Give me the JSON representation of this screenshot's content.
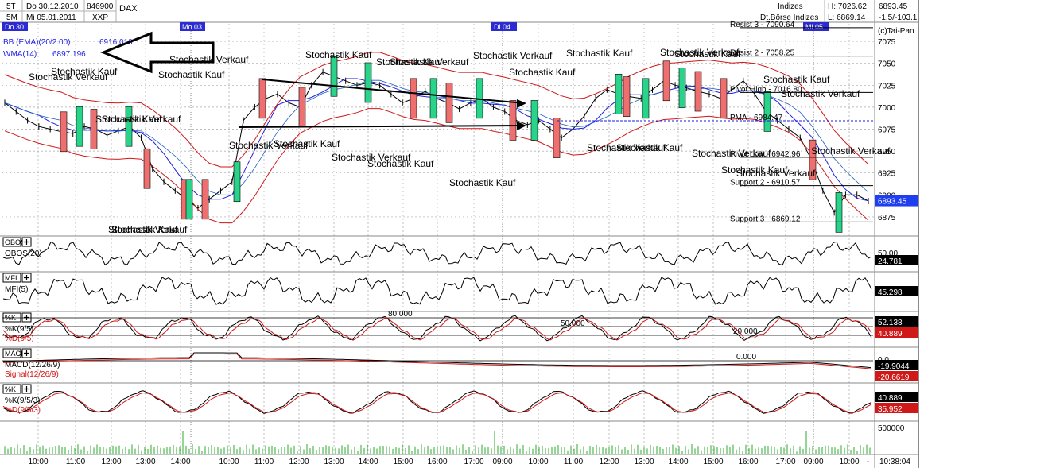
{
  "header": {
    "period_5t": "5T",
    "period_5m": "5M",
    "date_from": "Do 30.12.2010",
    "date_to": "Mi 05.01.2011",
    "code": "846900",
    "name": "DAX",
    "exchange_short": "XXP",
    "category": "Indizes",
    "exchange": "Dt.Börse Indizes",
    "high": "H: 7026.62",
    "low": "L: 6869.14",
    "last": "6893.45",
    "change": "-1.5/-103.1",
    "copyright": "(c)Tai-Pan"
  },
  "day_markers": [
    "Do 30",
    "Mo 03",
    "Di 04",
    "Mi 05"
  ],
  "legend": {
    "bb": "BB (EMA)(20/2.00)",
    "bb_value": "6916.010",
    "wma": "WMA(14)",
    "wma_value": "6897.196"
  },
  "levels": [
    {
      "label": "Resist 3 - 7090.64",
      "value": 7090.64
    },
    {
      "label": "Resist 2 - 7058.25",
      "value": 7058.25
    },
    {
      "label": "Pivot High - 7016.80",
      "value": 7016.8
    },
    {
      "label": "PMA - 6984.47",
      "value": 6984.47
    },
    {
      "label": "Pivot Low - 6942.96",
      "value": 6942.96
    },
    {
      "label": "Support 2 - 6910.57",
      "value": 6910.57
    },
    {
      "label": "Support 3 - 6869.12",
      "value": 6869.12
    }
  ],
  "signal_kauf": "Stochastik Kauf",
  "signal_verkauf": "Stochastik Verkauf",
  "panels": {
    "obos": {
      "button": "OBOS",
      "label": "OBOS(20)",
      "value": "24.781",
      "level": "50.00"
    },
    "mfi": {
      "button": "MFI",
      "label": "MFI(5)",
      "value": "45.298"
    },
    "stoch1": {
      "button": "%K",
      "label_k": "%K(9/5)",
      "label_d": "%D(9/5)",
      "value_k": "52.138",
      "value_d": "40.889",
      "level_80": "80.000",
      "level_50": "50.000",
      "level_20": "20.000"
    },
    "macd": {
      "button": "MACD",
      "label": "MACD(12/26/9)",
      "label_signal": "Signal(12/26/9)",
      "value": "-19.9044",
      "value_signal": "-20.6619",
      "level_0": "0.000",
      "level_0_axis": "0.0"
    },
    "stoch2": {
      "button": "%K",
      "label_k": "%K(9/5/3)",
      "label_d": "%D(9/5/3)",
      "value_k": "40.889",
      "value_d": "35.952"
    },
    "volume": {
      "scale": "500000"
    }
  },
  "time_axis": {
    "labels": [
      "10:00",
      "11:00",
      "12:00",
      "13:00",
      "14:00",
      "10:00",
      "11:00",
      "12:00",
      "13:00",
      "14:00",
      "15:00",
      "16:00",
      "17:00",
      "09:00",
      "10:00",
      "11:00",
      "12:00",
      "13:00",
      "14:00",
      "15:00",
      "16:00",
      "17:00",
      "09:00",
      "10:00"
    ],
    "dash": "-",
    "clock": "10:38:04"
  },
  "colors": {
    "bb": "#d01818",
    "wma": "#1e1ee6",
    "bull": "#29d38a",
    "bear": "#ee6f6f",
    "last_box": "#1e3ef0",
    "grid": "#a8a8a8"
  },
  "chart_data": {
    "type": "line",
    "title": "DAX 846900",
    "y_axis_ticks": [
      7075,
      7050,
      7025,
      7000,
      6975,
      6950,
      6925,
      6900,
      6875
    ],
    "ylim": [
      6855,
      7095
    ],
    "grid": true,
    "series": [
      {
        "name": "DAX",
        "values": [
          7005,
          6995,
          6985,
          6978,
          6975,
          6972,
          6970,
          6978,
          6975,
          6968,
          6973,
          6978,
          6965,
          6930,
          6915,
          6905,
          6895,
          6885,
          6895,
          6905,
          6915,
          6985,
          7000,
          7010,
          7015,
          7005,
          7000,
          7025,
          7040,
          7035,
          7030,
          7025,
          7028,
          7025,
          7015,
          7005,
          7010,
          7018,
          7010,
          7005,
          6998,
          7005,
          7010,
          7000,
          6995,
          6985,
          6980,
          6985,
          6975,
          6965,
          6975,
          6990,
          7010,
          7020,
          7015,
          7012,
          7010,
          7020,
          7030,
          7025,
          7022,
          7018,
          7015,
          7010,
          7020,
          7030,
          7015,
          6995,
          6985,
          6975,
          6965,
          6940,
          6905,
          6880,
          6900,
          6900,
          6893
        ]
      },
      {
        "name": "BB (EMA)(20/2.00)",
        "values": [
          6916.01
        ]
      },
      {
        "name": "WMA(14)",
        "values": [
          6897.196
        ]
      }
    ]
  }
}
